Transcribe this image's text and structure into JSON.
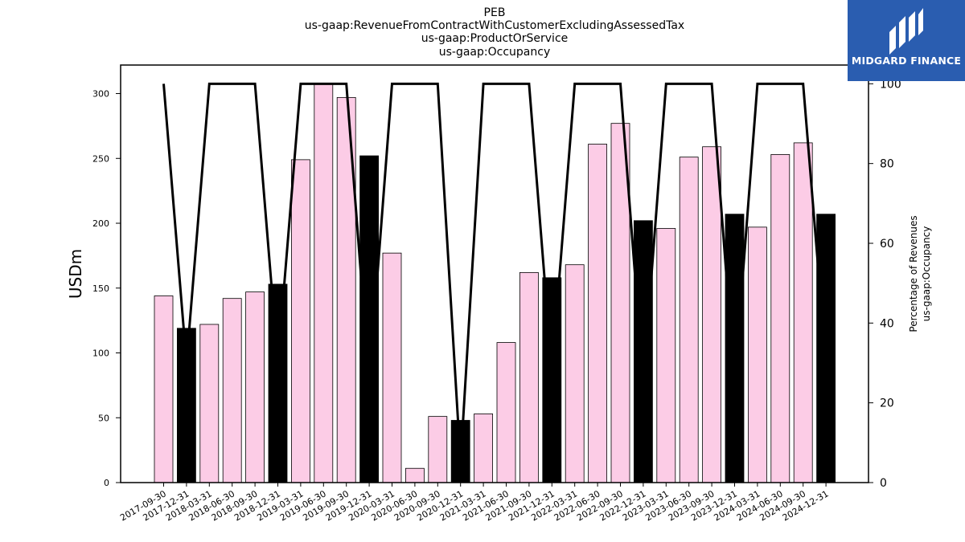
{
  "chart_data": {
    "type": "bar",
    "title_lines": [
      "PEB",
      "us-gaap:RevenueFromContractWithCustomerExcludingAssessedTax",
      "us-gaap:ProductOrService",
      "us-gaap:Occupancy"
    ],
    "ylabel": "USDm",
    "ylabel_right_lines": [
      "Percentage of Revenues",
      "us-gaap:Occupancy"
    ],
    "ylim": [
      0,
      322
    ],
    "ylim_right": [
      0,
      104.7
    ],
    "yticks": [
      0,
      50,
      100,
      150,
      200,
      250,
      300
    ],
    "yticks_right": [
      0,
      20,
      40,
      60,
      80,
      100
    ],
    "categories": [
      "2017-09-30",
      "2017-12-31",
      "2018-03-31",
      "2018-06-30",
      "2018-09-30",
      "2018-12-31",
      "2019-03-31",
      "2019-06-30",
      "2019-09-30",
      "2019-12-31",
      "2020-03-31",
      "2020-06-30",
      "2020-09-30",
      "2020-12-31",
      "2021-03-31",
      "2021-06-30",
      "2021-09-30",
      "2021-12-31",
      "2022-03-31",
      "2022-06-30",
      "2022-09-30",
      "2022-12-31",
      "2023-03-31",
      "2023-06-30",
      "2023-09-30",
      "2023-12-31",
      "2024-03-31",
      "2024-06-30",
      "2024-09-30",
      "2024-12-31"
    ],
    "series": [
      {
        "values": [
          144,
          119,
          122,
          142,
          147,
          153,
          249,
          308,
          297,
          252,
          177,
          11,
          51,
          48,
          53,
          108,
          162,
          158,
          168,
          261,
          277,
          202,
          196,
          251,
          259,
          207,
          197,
          253,
          262,
          207
        ],
        "colors": [
          "#fccce6",
          "#000000",
          "#fccce6",
          "#fccce6",
          "#fccce6",
          "#000000",
          "#fccce6",
          "#fccce6",
          "#fccce6",
          "#000000",
          "#fccce6",
          "#fccce6",
          "#fccce6",
          "#000000",
          "#fccce6",
          "#fccce6",
          "#fccce6",
          "#000000",
          "#fccce6",
          "#fccce6",
          "#fccce6",
          "#000000",
          "#fccce6",
          "#fccce6",
          "#fccce6",
          "#000000",
          "#fccce6",
          "#fccce6",
          "#fccce6",
          "#000000"
        ]
      },
      {
        "type": "line",
        "axis": "right",
        "color": "#000000",
        "values": [
          100,
          30,
          100,
          100,
          100,
          30,
          100,
          100,
          100,
          25,
          100,
          100,
          100,
          5,
          100,
          100,
          100,
          28,
          100,
          100,
          100,
          25,
          100,
          100,
          100,
          25,
          100,
          100,
          100,
          30
        ]
      }
    ]
  },
  "logo": {
    "text": "MIDGARD FINANCE",
    "bg": "#2a5db0"
  }
}
